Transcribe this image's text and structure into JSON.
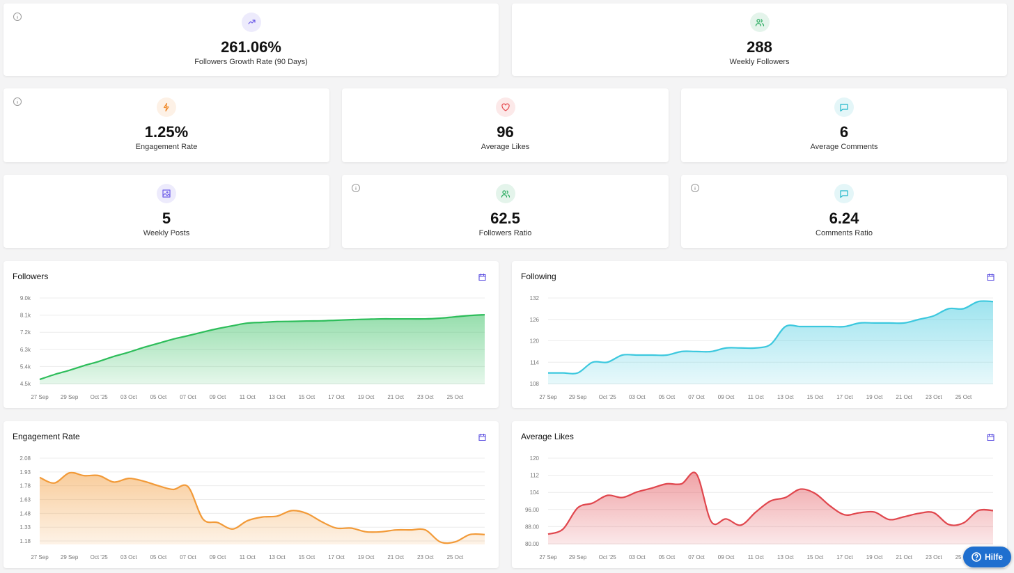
{
  "cards": [
    {
      "value": "261.06%",
      "label": "Followers Growth Rate (90 Days)",
      "icon": "trend",
      "color": "#6d5ce8",
      "info": true
    },
    {
      "value": "288",
      "label": "Weekly Followers",
      "icon": "users",
      "color": "#22a85a",
      "info": false
    },
    {
      "value": "1.25%",
      "label": "Engagement Rate",
      "icon": "bolt",
      "color": "#f08c2e",
      "info": true
    },
    {
      "value": "96",
      "label": "Average Likes",
      "icon": "heart",
      "color": "#e5484d",
      "info": false
    },
    {
      "value": "6",
      "label": "Average Comments",
      "icon": "chat",
      "color": "#1fb6c9",
      "info": false
    },
    {
      "value": "5",
      "label": "Weekly Posts",
      "icon": "image",
      "color": "#6d5ce8",
      "info": false
    },
    {
      "value": "62.5",
      "label": "Followers Ratio",
      "icon": "users",
      "color": "#22a85a",
      "info": true
    },
    {
      "value": "6.24",
      "label": "Comments Ratio",
      "icon": "chat",
      "color": "#1fb6c9",
      "info": true
    }
  ],
  "chart_data": [
    {
      "type": "area",
      "title": "Followers",
      "color": "#2dbd5a",
      "grid": true,
      "categories": [
        "27 Sep",
        null,
        "29 Sep",
        null,
        "Oct '25",
        null,
        "03 Oct",
        null,
        "05 Oct",
        null,
        "07 Oct",
        null,
        "09 Oct",
        null,
        "11 Oct",
        null,
        "13 Oct",
        null,
        "15 Oct",
        null,
        "17 Oct",
        null,
        "19 Oct",
        null,
        "21 Oct",
        null,
        "23 Oct",
        null,
        "25 Oct",
        null,
        null
      ],
      "values": [
        4720,
        4980,
        5200,
        5450,
        5670,
        5930,
        6150,
        6400,
        6620,
        6840,
        7020,
        7210,
        7390,
        7540,
        7680,
        7720,
        7760,
        7770,
        7790,
        7800,
        7830,
        7860,
        7880,
        7900,
        7900,
        7900,
        7900,
        7940,
        8010,
        8080,
        8120
      ],
      "ylim": [
        4500,
        9000
      ],
      "yticks": [
        {
          "value": 4500,
          "label": "4.5k"
        },
        {
          "value": 5400,
          "label": "5.4k"
        },
        {
          "value": 6300,
          "label": "6.3k"
        },
        {
          "value": 7200,
          "label": "7.2k"
        },
        {
          "value": 8100,
          "label": "8.1k"
        },
        {
          "value": 9000,
          "label": "9.0k"
        }
      ]
    },
    {
      "type": "area",
      "title": "Following",
      "color": "#3cc8de",
      "grid": true,
      "categories": [
        "27 Sep",
        null,
        "29 Sep",
        null,
        "Oct '25",
        null,
        "03 Oct",
        null,
        "05 Oct",
        null,
        "07 Oct",
        null,
        "09 Oct",
        null,
        "11 Oct",
        null,
        "13 Oct",
        null,
        "15 Oct",
        null,
        "17 Oct",
        null,
        "19 Oct",
        null,
        "21 Oct",
        null,
        "23 Oct",
        null,
        "25 Oct",
        null,
        null
      ],
      "values": [
        111,
        111,
        111,
        114,
        114,
        116,
        116,
        116,
        116,
        117,
        117,
        117,
        118,
        118,
        118,
        119,
        124,
        124,
        124,
        124,
        124,
        125,
        125,
        125,
        125,
        126,
        127,
        129,
        129,
        131,
        131
      ],
      "ylim": [
        108,
        132
      ],
      "yticks": [
        108,
        114,
        120,
        126,
        132
      ]
    },
    {
      "type": "area",
      "title": "Engagement Rate",
      "color": "#f29a38",
      "grid": true,
      "categories": [
        "27 Sep",
        null,
        "29 Sep",
        null,
        "Oct '25",
        null,
        "03 Oct",
        null,
        "05 Oct",
        null,
        "07 Oct",
        null,
        "09 Oct",
        null,
        "11 Oct",
        null,
        "13 Oct",
        null,
        "15 Oct",
        null,
        "17 Oct",
        null,
        "19 Oct",
        null,
        "21 Oct",
        null,
        "23 Oct",
        null,
        "25 Oct",
        null,
        null
      ],
      "values": [
        1.87,
        1.81,
        1.92,
        1.89,
        1.89,
        1.82,
        1.86,
        1.83,
        1.78,
        1.74,
        1.77,
        1.42,
        1.38,
        1.31,
        1.4,
        1.44,
        1.45,
        1.51,
        1.48,
        1.39,
        1.32,
        1.32,
        1.28,
        1.28,
        1.3,
        1.3,
        1.3,
        1.17,
        1.17,
        1.25,
        1.25
      ],
      "ylim": [
        1.15,
        2.08
      ],
      "yticks": [
        1.18,
        1.33,
        1.48,
        1.63,
        1.78,
        1.93,
        2.08
      ]
    },
    {
      "type": "area",
      "title": "Average Likes",
      "color": "#e0464d",
      "grid": true,
      "categories": [
        "27 Sep",
        null,
        "29 Sep",
        null,
        "Oct '25",
        null,
        "03 Oct",
        null,
        "05 Oct",
        null,
        "07 Oct",
        null,
        "09 Oct",
        null,
        "11 Oct",
        null,
        "13 Oct",
        null,
        "15 Oct",
        null,
        "17 Oct",
        null,
        "19 Oct",
        null,
        "21 Oct",
        null,
        "23 Oct",
        null,
        "25 Oct",
        null,
        null
      ],
      "values": [
        84.5,
        86.8,
        96.8,
        99,
        102.6,
        101.6,
        104.2,
        106,
        108,
        108,
        112.6,
        90.3,
        91.6,
        88.7,
        94.8,
        100,
        101.6,
        105.5,
        103.5,
        97.7,
        93.5,
        94.5,
        94.8,
        91.3,
        92.6,
        94.2,
        94.5,
        89,
        89.7,
        95.5,
        95.5
      ],
      "ylim": [
        80,
        120
      ],
      "yticks": [
        {
          "value": 80,
          "label": "80.00"
        },
        {
          "value": 88,
          "label": "88.00"
        },
        {
          "value": 96,
          "label": "96.00"
        },
        104,
        112,
        120
      ]
    }
  ],
  "help_button": "Hilfe"
}
